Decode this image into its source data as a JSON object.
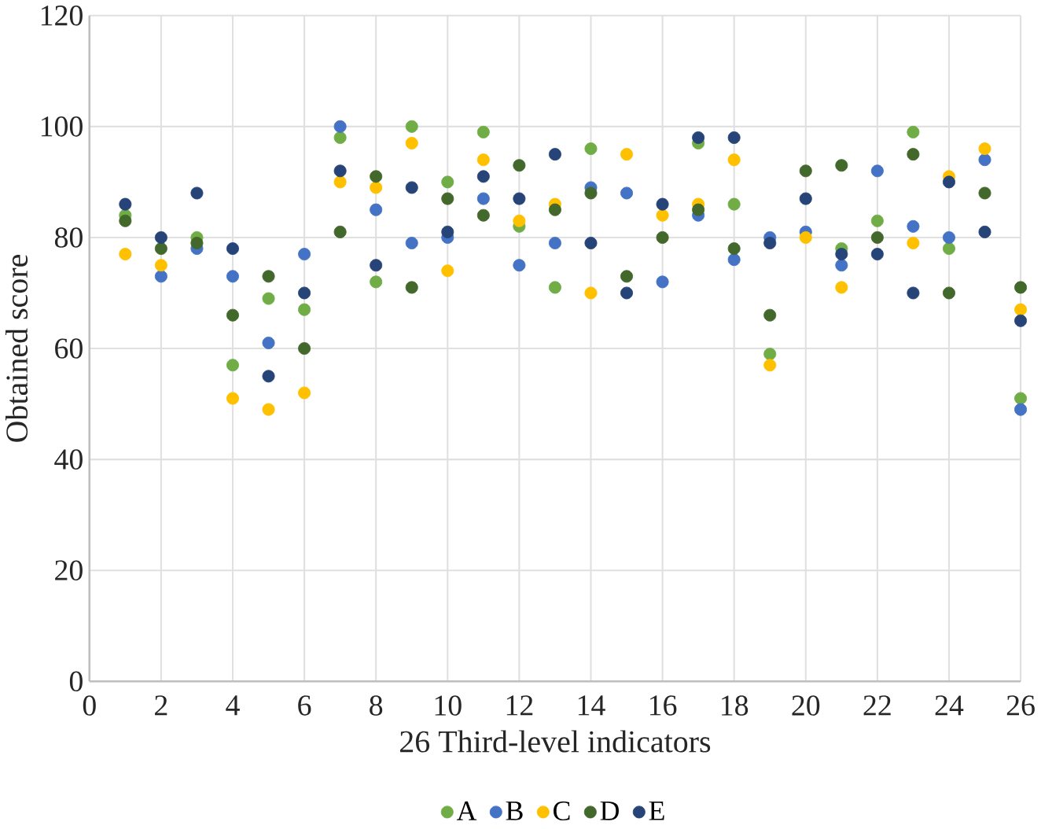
{
  "chart_data": {
    "type": "scatter",
    "xlabel": "26 Third-level indicators",
    "ylabel": "Obtained score",
    "x": [
      1,
      2,
      3,
      4,
      5,
      6,
      7,
      8,
      9,
      10,
      11,
      12,
      13,
      14,
      15,
      16,
      17,
      18,
      19,
      20,
      21,
      22,
      23,
      24,
      25,
      26
    ],
    "series": [
      {
        "name": "A",
        "color": "#70ad47",
        "values": [
          84,
          null,
          80,
          57,
          69,
          67,
          98,
          72,
          100,
          90,
          99,
          82,
          71,
          96,
          null,
          null,
          97,
          86,
          59,
          null,
          78,
          83,
          99,
          78,
          null,
          51
        ]
      },
      {
        "name": "B",
        "color": "#4472c4",
        "values": [
          null,
          73,
          78,
          73,
          61,
          77,
          100,
          85,
          79,
          80,
          87,
          75,
          79,
          89,
          88,
          72,
          84,
          76,
          80,
          81,
          75,
          92,
          82,
          80,
          94,
          49
        ]
      },
      {
        "name": "C",
        "color": "#ffc000",
        "values": [
          77,
          75,
          null,
          51,
          49,
          52,
          90,
          89,
          97,
          74,
          94,
          83,
          86,
          70,
          95,
          84,
          86,
          94,
          57,
          80,
          71,
          null,
          79,
          91,
          96,
          67
        ]
      },
      {
        "name": "D",
        "color": "#43682b",
        "values": [
          83,
          78,
          79,
          66,
          73,
          60,
          81,
          91,
          71,
          87,
          84,
          93,
          85,
          88,
          73,
          80,
          85,
          78,
          66,
          92,
          93,
          80,
          95,
          70,
          88,
          71
        ]
      },
      {
        "name": "E",
        "color": "#264478",
        "values": [
          86,
          80,
          88,
          78,
          55,
          70,
          92,
          75,
          89,
          81,
          91,
          87,
          95,
          79,
          70,
          86,
          98,
          98,
          79,
          87,
          77,
          77,
          70,
          90,
          81,
          65
        ]
      }
    ],
    "xlim": [
      0,
      26
    ],
    "xticks": [
      0,
      2,
      4,
      6,
      8,
      10,
      12,
      14,
      16,
      18,
      20,
      22,
      24,
      26
    ],
    "ylim": [
      0,
      120
    ],
    "yticks": [
      0,
      20,
      40,
      60,
      80,
      100,
      120
    ],
    "grid": true,
    "legend": "bottom",
    "marker": "circle"
  }
}
